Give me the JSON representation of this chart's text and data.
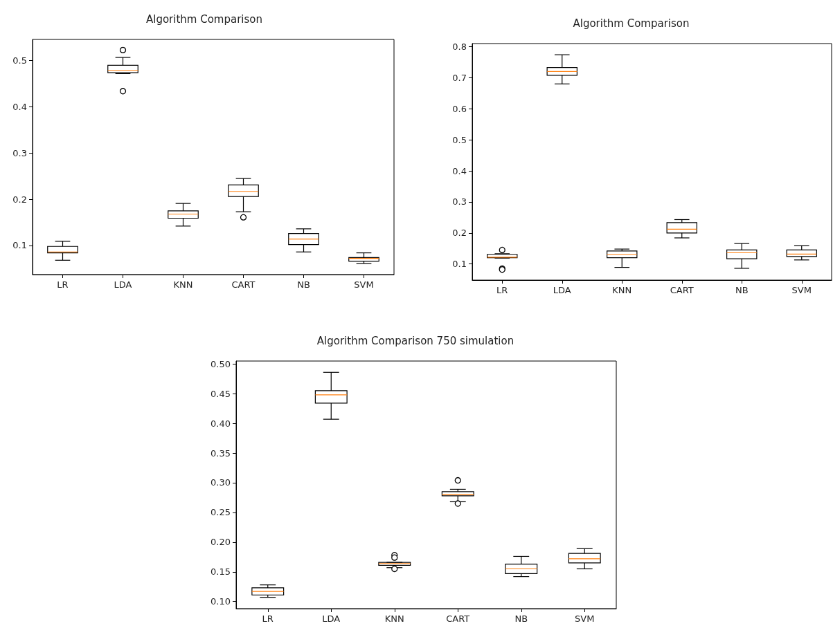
{
  "chart_data": [
    {
      "type": "box",
      "title": "Algorithm Comparison",
      "categories": [
        "LR",
        "LDA",
        "KNN",
        "CART",
        "NB",
        "SVM"
      ],
      "ylim": [
        0.037,
        0.546
      ],
      "yticks": [
        0.1,
        0.2,
        0.3,
        0.4,
        0.5
      ],
      "grid": false,
      "boxes": [
        {
          "low": 0.068,
          "q1": 0.084,
          "median": 0.086,
          "q3": 0.098,
          "high": 0.109
        },
        {
          "low": 0.472,
          "q1": 0.474,
          "median": 0.479,
          "q3": 0.49,
          "high": 0.507,
          "outliers": [
            0.523,
            0.434
          ]
        },
        {
          "low": 0.142,
          "q1": 0.159,
          "median": 0.168,
          "q3": 0.175,
          "high": 0.191
        },
        {
          "low": 0.173,
          "q1": 0.206,
          "median": 0.217,
          "q3": 0.231,
          "high": 0.245,
          "outliers": [
            0.161
          ]
        },
        {
          "low": 0.086,
          "q1": 0.102,
          "median": 0.114,
          "q3": 0.126,
          "high": 0.136
        },
        {
          "low": 0.061,
          "q1": 0.066,
          "median": 0.072,
          "q3": 0.074,
          "high": 0.084
        }
      ]
    },
    {
      "type": "box",
      "title": "Algorithm Comparison",
      "categories": [
        "LR",
        "LDA",
        "KNN",
        "CART",
        "NB",
        "SVM"
      ],
      "ylim": [
        0.048,
        0.81
      ],
      "yticks": [
        0.1,
        0.2,
        0.3,
        0.4,
        0.5,
        0.6,
        0.7,
        0.8
      ],
      "grid": false,
      "boxes": [
        {
          "low": 0.119,
          "q1": 0.12,
          "median": 0.122,
          "q3": 0.131,
          "high": 0.133,
          "outliers": [
            0.145,
            0.085,
            0.082
          ]
        },
        {
          "low": 0.68,
          "q1": 0.708,
          "median": 0.72,
          "q3": 0.733,
          "high": 0.774
        },
        {
          "low": 0.089,
          "q1": 0.12,
          "median": 0.131,
          "q3": 0.142,
          "high": 0.148
        },
        {
          "low": 0.184,
          "q1": 0.2,
          "median": 0.212,
          "q3": 0.233,
          "high": 0.243
        },
        {
          "low": 0.086,
          "q1": 0.117,
          "median": 0.136,
          "q3": 0.145,
          "high": 0.166
        },
        {
          "low": 0.113,
          "q1": 0.124,
          "median": 0.132,
          "q3": 0.145,
          "high": 0.159
        }
      ]
    },
    {
      "type": "box",
      "title": "Algorithm Comparison 750 simulation",
      "categories": [
        "LR",
        "LDA",
        "KNN",
        "CART",
        "NB",
        "SVM"
      ],
      "ylim": [
        0.088,
        0.505
      ],
      "yticks": [
        {
          "value": 0.1,
          "label": "0.10"
        },
        {
          "value": 0.15,
          "label": "0.15"
        },
        {
          "value": 0.2,
          "label": "0.20"
        },
        {
          "value": 0.25,
          "label": "0.25"
        },
        {
          "value": 0.3,
          "label": "0.30"
        },
        {
          "value": 0.35,
          "label": "0.35"
        },
        {
          "value": 0.4,
          "label": "0.40"
        },
        {
          "value": 0.45,
          "label": "0.45"
        },
        {
          "value": 0.5,
          "label": "0.50"
        }
      ],
      "grid": false,
      "boxes": [
        {
          "low": 0.107,
          "q1": 0.111,
          "median": 0.117,
          "q3": 0.123,
          "high": 0.128
        },
        {
          "low": 0.407,
          "q1": 0.434,
          "median": 0.448,
          "q3": 0.455,
          "high": 0.486
        },
        {
          "low": 0.157,
          "q1": 0.161,
          "median": 0.164,
          "q3": 0.166,
          "high": 0.166,
          "outliers": [
            0.178,
            0.174,
            0.155
          ]
        },
        {
          "low": 0.268,
          "q1": 0.278,
          "median": 0.28,
          "q3": 0.285,
          "high": 0.289,
          "outliers": [
            0.304,
            0.265
          ]
        },
        {
          "low": 0.142,
          "q1": 0.147,
          "median": 0.155,
          "q3": 0.163,
          "high": 0.176
        },
        {
          "low": 0.155,
          "q1": 0.165,
          "median": 0.172,
          "q3": 0.181,
          "high": 0.189
        }
      ]
    }
  ]
}
